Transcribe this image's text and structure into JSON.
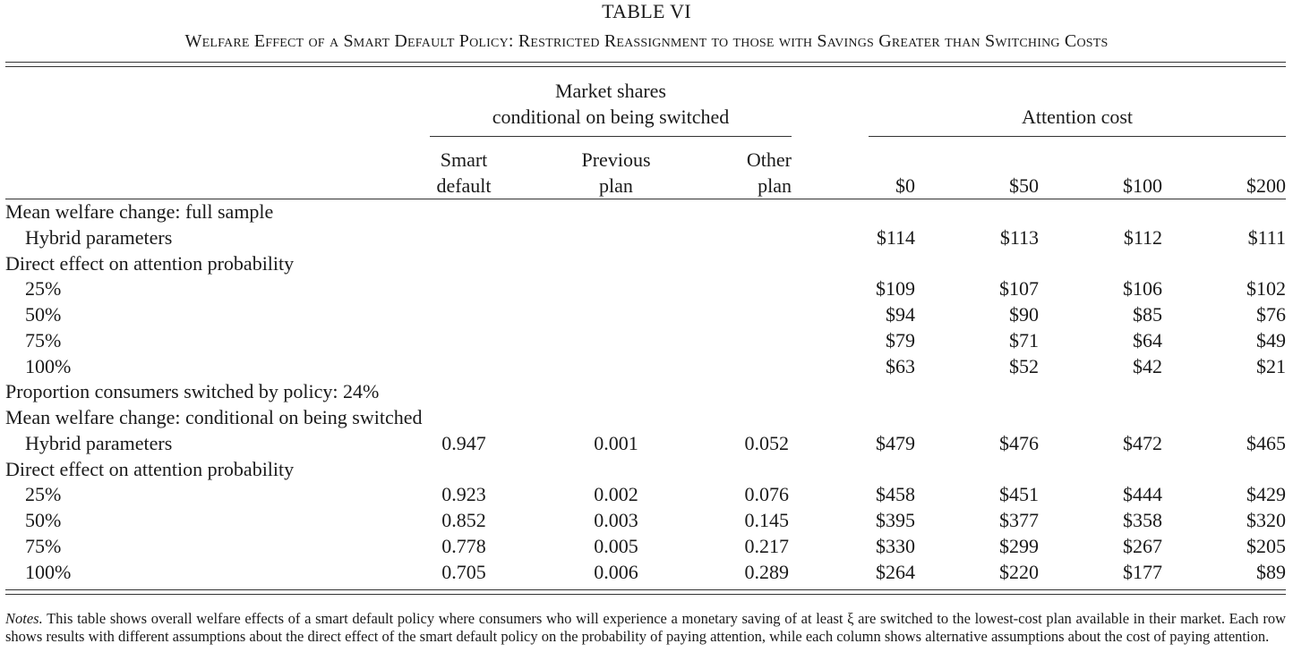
{
  "title": "TABLE VI",
  "subtitle": "Welfare Effect of a Smart Default Policy: Restricted Reassignment to those with Savings Greater than Switching Costs",
  "headers": {
    "market_group_line1": "Market shares",
    "market_group_line2": "conditional on being switched",
    "attention_group": "Attention cost",
    "smart_default_line1": "Smart",
    "smart_default_line2": "default",
    "previous_plan_line1": "Previous",
    "previous_plan_line2": "plan",
    "other_plan_line1": "Other",
    "other_plan_line2": "plan",
    "cost_0": "$0",
    "cost_50": "$50",
    "cost_100": "$100",
    "cost_200": "$200"
  },
  "rows": [
    {
      "label": "Mean welfare change: full sample",
      "indent": false,
      "shares": [
        "",
        "",
        ""
      ],
      "costs": [
        "",
        "",
        "",
        ""
      ]
    },
    {
      "label": "Hybrid parameters",
      "indent": true,
      "shares": [
        "",
        "",
        ""
      ],
      "costs": [
        "$114",
        "$113",
        "$112",
        "$111"
      ]
    },
    {
      "label": "Direct effect on attention probability",
      "indent": false,
      "shares": [
        "",
        "",
        ""
      ],
      "costs": [
        "",
        "",
        "",
        ""
      ]
    },
    {
      "label": "25%",
      "indent": true,
      "shares": [
        "",
        "",
        ""
      ],
      "costs": [
        "$109",
        "$107",
        "$106",
        "$102"
      ]
    },
    {
      "label": "50%",
      "indent": true,
      "shares": [
        "",
        "",
        ""
      ],
      "costs": [
        "$94",
        "$90",
        "$85",
        "$76"
      ]
    },
    {
      "label": "75%",
      "indent": true,
      "shares": [
        "",
        "",
        ""
      ],
      "costs": [
        "$79",
        "$71",
        "$64",
        "$49"
      ]
    },
    {
      "label": "100%",
      "indent": true,
      "shares": [
        "",
        "",
        ""
      ],
      "costs": [
        "$63",
        "$52",
        "$42",
        "$21"
      ]
    },
    {
      "label": "Proportion consumers switched by policy: 24%",
      "indent": false,
      "shares": [
        "",
        "",
        ""
      ],
      "costs": [
        "",
        "",
        "",
        ""
      ]
    },
    {
      "label": "Mean welfare change: conditional on being switched",
      "indent": false,
      "shares": [
        "",
        "",
        ""
      ],
      "costs": [
        "",
        "",
        "",
        ""
      ]
    },
    {
      "label": "Hybrid parameters",
      "indent": true,
      "shares": [
        "0.947",
        "0.001",
        "0.052"
      ],
      "costs": [
        "$479",
        "$476",
        "$472",
        "$465"
      ]
    },
    {
      "label": "Direct effect on attention probability",
      "indent": false,
      "shares": [
        "",
        "",
        ""
      ],
      "costs": [
        "",
        "",
        "",
        ""
      ]
    },
    {
      "label": "25%",
      "indent": true,
      "shares": [
        "0.923",
        "0.002",
        "0.076"
      ],
      "costs": [
        "$458",
        "$451",
        "$444",
        "$429"
      ]
    },
    {
      "label": "50%",
      "indent": true,
      "shares": [
        "0.852",
        "0.003",
        "0.145"
      ],
      "costs": [
        "$395",
        "$377",
        "$358",
        "$320"
      ]
    },
    {
      "label": "75%",
      "indent": true,
      "shares": [
        "0.778",
        "0.005",
        "0.217"
      ],
      "costs": [
        "$330",
        "$299",
        "$267",
        "$205"
      ]
    },
    {
      "label": "100%",
      "indent": true,
      "shares": [
        "0.705",
        "0.006",
        "0.289"
      ],
      "costs": [
        "$264",
        "$220",
        "$177",
        "$89"
      ]
    }
  ],
  "notes": {
    "lead": "Notes.",
    "text": " This table shows overall welfare effects of a smart default policy where consumers who will experience a monetary saving of at least ξ are switched to the lowest-cost plan available in their market. Each row shows results with different assumptions about the direct effect of the smart default policy on the probability of paying attention, while each column shows alternative assumptions about the cost of paying attention."
  }
}
